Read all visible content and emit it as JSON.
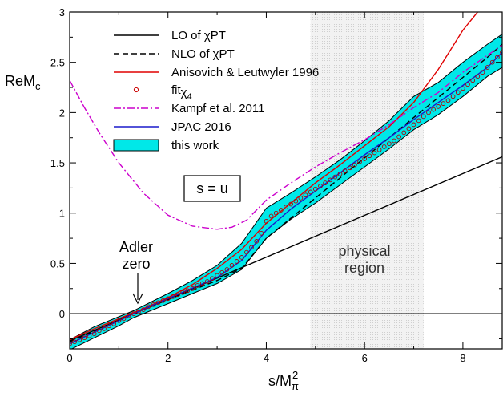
{
  "chart_data": {
    "type": "line",
    "xlabel_main": "s/M",
    "xlabel_sup": "2",
    "xlabel_sub": "π",
    "ylabel_main": "ReM",
    "ylabel_sub": "c",
    "xlim": [
      0,
      8.8
    ],
    "ylim": [
      -0.35,
      3.0
    ],
    "x_ticks": [
      0,
      2,
      4,
      6,
      8
    ],
    "y_ticks": [
      0,
      0.5,
      1,
      1.5,
      2,
      2.5,
      3
    ],
    "x_tick_labels": [
      "0",
      "2",
      "4",
      "6",
      "8"
    ],
    "y_tick_labels": [
      "0",
      "0.5",
      "1",
      "1.5",
      "2",
      "2.5",
      "3"
    ],
    "physical_region": {
      "x0": 4.9,
      "x1": 7.2,
      "label_line1": "physical",
      "label_line2": "region"
    },
    "zero_line": 0,
    "box_label": "s = u",
    "adler_label_line1": "Adler",
    "adler_label_line2": "zero",
    "adler_x": 1.3,
    "legend": {
      "position": "top-left",
      "entries": [
        {
          "id": "lo",
          "label": "LO of χPT"
        },
        {
          "id": "nlo",
          "label": "NLO of χPT"
        },
        {
          "id": "al",
          "label": "Anisovich & Leutwyler 1996"
        },
        {
          "id": "fit",
          "label_main": "fit",
          "label_sub": "χ",
          "label_subsub": "4"
        },
        {
          "id": "kampf",
          "label": "Kampf et al. 2011"
        },
        {
          "id": "jpac",
          "label": "JPAC 2016"
        },
        {
          "id": "band",
          "label": "this work"
        }
      ]
    },
    "series": [
      {
        "id": "lo",
        "color": "#000000",
        "dash": "",
        "x": [
          0,
          8.8
        ],
        "y": [
          -0.27,
          1.56
        ]
      },
      {
        "id": "nlo",
        "color": "#000000",
        "dash": "7,4",
        "x": [
          0,
          1,
          1.3,
          2,
          3,
          3.5,
          4,
          4.5,
          5,
          5.5,
          6,
          6.5,
          7,
          7.5,
          8,
          8.5,
          8.8
        ],
        "y": [
          -0.28,
          -0.07,
          0,
          0.14,
          0.33,
          0.45,
          0.75,
          0.95,
          1.15,
          1.35,
          1.55,
          1.75,
          1.95,
          2.15,
          2.35,
          2.55,
          2.68
        ]
      },
      {
        "id": "al",
        "color": "#e00000",
        "dash": "",
        "x": [
          0,
          0.5,
          1,
          1.5,
          2,
          2.5,
          3,
          3.5,
          4,
          4.5,
          5,
          5.5,
          6,
          6.5,
          7,
          7.5,
          8,
          8.3
        ],
        "y": [
          -0.26,
          -0.15,
          -0.05,
          0.05,
          0.16,
          0.29,
          0.45,
          0.64,
          0.9,
          1.1,
          1.3,
          1.48,
          1.67,
          1.86,
          2.1,
          2.43,
          2.82,
          3.0
        ]
      },
      {
        "id": "kampf",
        "color": "#cc00cc",
        "dash": "9,3,2,3",
        "x": [
          0,
          0.3,
          0.6,
          1,
          1.5,
          2,
          2.5,
          3,
          3.3,
          3.6,
          4,
          4.5,
          5,
          5.5,
          6,
          6.5,
          7,
          7.5,
          8,
          8.5,
          8.8
        ],
        "y": [
          2.32,
          2.05,
          1.8,
          1.5,
          1.2,
          0.98,
          0.87,
          0.84,
          0.86,
          0.93,
          1.13,
          1.3,
          1.46,
          1.6,
          1.73,
          1.88,
          2.05,
          2.2,
          2.4,
          2.57,
          2.67
        ]
      },
      {
        "id": "jpac",
        "color": "#1a1acc",
        "dash": "",
        "x": [
          0,
          1,
          1.3,
          2,
          3,
          3.5,
          4,
          4.5,
          5,
          5.5,
          6,
          6.5,
          7,
          7.5,
          8,
          8.5,
          8.8
        ],
        "y": [
          -0.3,
          -0.07,
          0,
          0.15,
          0.36,
          0.53,
          0.83,
          1.04,
          1.22,
          1.4,
          1.58,
          1.75,
          1.93,
          2.1,
          2.27,
          2.45,
          2.6
        ]
      }
    ],
    "fit_points": {
      "x": [
        0,
        0.1,
        0.2,
        0.3,
        0.4,
        0.5,
        0.6,
        0.7,
        0.8,
        0.9,
        1.0,
        1.1,
        1.2,
        1.3,
        1.4,
        1.5,
        1.6,
        1.7,
        1.8,
        1.9,
        2.0,
        2.1,
        2.2,
        2.3,
        2.4,
        2.5,
        2.6,
        2.7,
        2.8,
        2.9,
        3.0,
        3.1,
        3.2,
        3.3,
        3.4,
        3.5,
        3.6,
        3.7,
        3.8,
        3.9,
        4.0,
        4.1,
        4.2,
        4.3,
        4.4,
        4.5,
        4.6,
        4.7,
        4.8,
        4.9,
        5.0,
        5.1,
        5.2,
        5.3,
        5.4,
        5.5,
        5.6,
        5.7,
        5.8,
        5.9,
        6.0,
        6.1,
        6.2,
        6.3,
        6.4,
        6.5,
        6.6,
        6.7,
        6.8,
        6.9,
        7.0,
        7.1,
        7.2,
        7.3,
        7.4,
        7.5,
        7.6,
        7.7,
        7.8,
        7.9,
        8.0,
        8.1,
        8.2,
        8.3,
        8.4,
        8.5,
        8.6,
        8.7,
        8.8
      ],
      "y": [
        -0.3,
        -0.28,
        -0.26,
        -0.24,
        -0.22,
        -0.2,
        -0.17,
        -0.15,
        -0.12,
        -0.1,
        -0.07,
        -0.05,
        -0.02,
        0.0,
        0.02,
        0.04,
        0.07,
        0.09,
        0.11,
        0.13,
        0.15,
        0.17,
        0.19,
        0.21,
        0.23,
        0.25,
        0.28,
        0.3,
        0.32,
        0.35,
        0.38,
        0.41,
        0.44,
        0.48,
        0.52,
        0.56,
        0.61,
        0.66,
        0.72,
        0.8,
        0.92,
        0.97,
        1.0,
        1.03,
        1.06,
        1.09,
        1.12,
        1.15,
        1.18,
        1.21,
        1.24,
        1.27,
        1.3,
        1.33,
        1.36,
        1.39,
        1.42,
        1.45,
        1.48,
        1.51,
        1.54,
        1.57,
        1.6,
        1.63,
        1.66,
        1.69,
        1.72,
        1.76,
        1.8,
        1.84,
        1.88,
        1.92,
        1.96,
        2.0,
        2.03,
        2.06,
        2.09,
        2.12,
        2.16,
        2.2,
        2.24,
        2.28,
        2.32,
        2.36,
        2.4,
        2.45,
        2.5,
        2.55,
        2.6
      ]
    },
    "band": {
      "color": "#00e8e8",
      "x": [
        0,
        0.5,
        1,
        1.3,
        2,
        2.5,
        3,
        3.5,
        4,
        4.5,
        5,
        5.5,
        6,
        6.5,
        7,
        7.5,
        8,
        8.5,
        8.8
      ],
      "upper": [
        -0.26,
        -0.13,
        -0.03,
        0.03,
        0.2,
        0.33,
        0.48,
        0.7,
        1.05,
        1.2,
        1.36,
        1.53,
        1.72,
        1.92,
        2.16,
        2.3,
        2.5,
        2.68,
        2.78
      ],
      "lower": [
        -0.36,
        -0.24,
        -0.12,
        -0.04,
        0.1,
        0.2,
        0.3,
        0.44,
        0.75,
        0.94,
        1.1,
        1.28,
        1.46,
        1.64,
        1.83,
        1.98,
        2.16,
        2.36,
        2.45
      ]
    }
  }
}
